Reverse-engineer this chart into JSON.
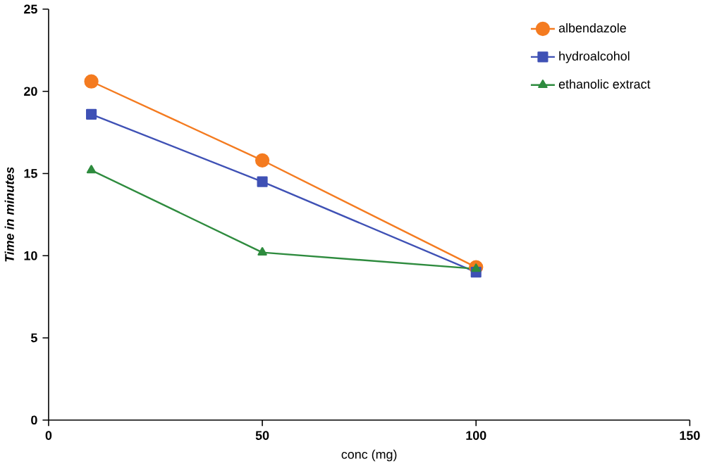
{
  "chart_data": {
    "type": "line",
    "xlabel": "conc (mg)",
    "ylabel": "Time in minutes",
    "x": [
      10,
      50,
      100
    ],
    "series": [
      {
        "name": "albendazole",
        "color": "#f47b20",
        "values": [
          20.6,
          15.8,
          9.3
        ],
        "marker": "circle"
      },
      {
        "name": "hydroalcohol",
        "color": "#3f51b5",
        "values": [
          18.6,
          14.5,
          9.0
        ],
        "marker": "square"
      },
      {
        "name": "ethanolic extract",
        "color": "#2e8b3e",
        "values": [
          15.2,
          10.2,
          9.2
        ],
        "marker": "triangle"
      }
    ],
    "xlim": [
      0,
      150
    ],
    "xticks": [
      0,
      50,
      100,
      150
    ],
    "ylim": [
      0,
      25
    ],
    "yticks": [
      0,
      5,
      10,
      15,
      20,
      25
    ],
    "legend": "top right",
    "grid": false
  }
}
